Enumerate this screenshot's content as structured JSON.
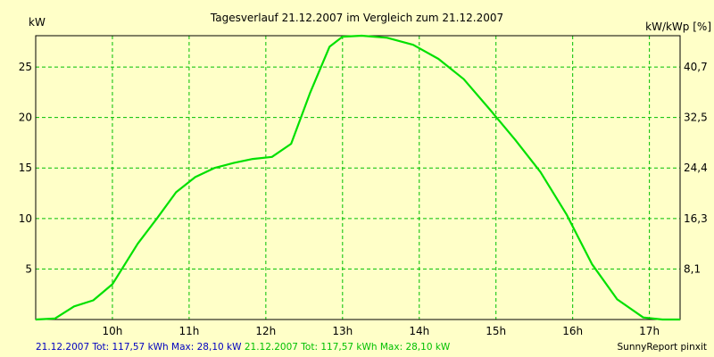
{
  "chart_data": {
    "type": "line",
    "title": "Tagesverlauf 21.12.2007 im Vergleich zum 21.12.2007",
    "ylabel_left": "kW",
    "ylabel_right": "kW/kWp [%]",
    "xlim": [
      9.0,
      17.4
    ],
    "ylim": [
      0,
      28.1
    ],
    "x_ticks": [
      {
        "value": 10,
        "label": "10h"
      },
      {
        "value": 11,
        "label": "11h"
      },
      {
        "value": 12,
        "label": "12h"
      },
      {
        "value": 13,
        "label": "13h"
      },
      {
        "value": 14,
        "label": "14h"
      },
      {
        "value": 15,
        "label": "15h"
      },
      {
        "value": 16,
        "label": "16h"
      },
      {
        "value": 17,
        "label": "17h"
      }
    ],
    "y_ticks_left": [
      5,
      10,
      15,
      20,
      25
    ],
    "y_ticks_right": [
      {
        "value": 5,
        "label": "8,1"
      },
      {
        "value": 10,
        "label": "16,3"
      },
      {
        "value": 15,
        "label": "24,4"
      },
      {
        "value": 20,
        "label": "32,5"
      },
      {
        "value": 25,
        "label": "40,7"
      }
    ],
    "grid": true,
    "series": [
      {
        "color": "#00e000",
        "x": [
          9.0,
          9.25,
          9.5,
          9.75,
          10.0,
          10.33,
          10.58,
          10.83,
          11.08,
          11.33,
          11.58,
          11.83,
          12.08,
          12.33,
          12.58,
          12.83,
          13.0,
          13.25,
          13.58,
          13.92,
          14.25,
          14.58,
          14.92,
          15.25,
          15.58,
          15.92,
          16.25,
          16.58,
          16.92,
          17.17,
          17.4
        ],
        "y": [
          0.0,
          0.1,
          1.3,
          1.9,
          3.5,
          7.5,
          10.0,
          12.6,
          14.1,
          15.0,
          15.5,
          15.9,
          16.1,
          17.4,
          22.5,
          27.0,
          28.0,
          28.1,
          27.9,
          27.2,
          25.8,
          23.8,
          20.8,
          17.8,
          14.6,
          10.4,
          5.5,
          2.0,
          0.2,
          0.0,
          0.0
        ]
      }
    ]
  },
  "footer": {
    "left_blue": "21.12.2007 Tot: 117,57 kWh Max: 28,10 kW",
    "left_green": "21.12.2007 Tot: 117,57 kWh Max: 28,10 kW",
    "right": "SunnyReport pinxit"
  },
  "colors": {
    "background": "#ffffc8",
    "grid": "#00c000",
    "line": "#00e000",
    "footer_blue": "#0000c0",
    "footer_green": "#00c000"
  }
}
